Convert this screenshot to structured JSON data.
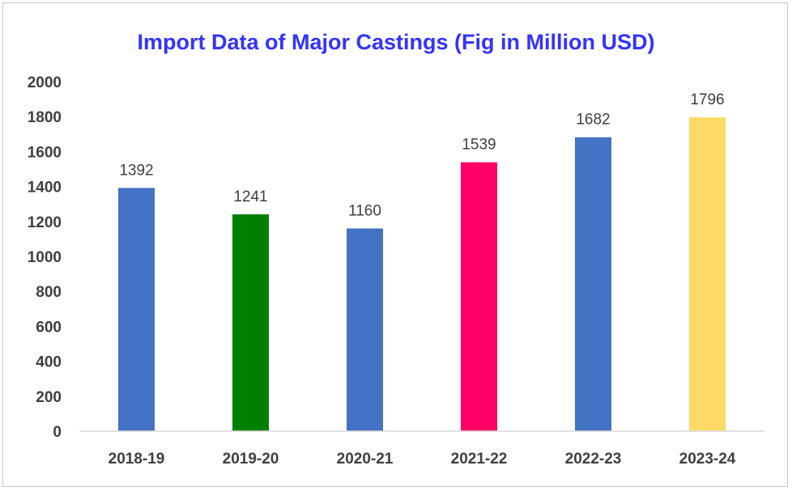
{
  "chart_data": {
    "type": "bar",
    "title": "Import Data of Major Castings (Fig in Million USD)",
    "categories": [
      "2018-19",
      "2019-20",
      "2020-21",
      "2021-22",
      "2022-23",
      "2023-24"
    ],
    "values": [
      1392,
      1241,
      1160,
      1539,
      1682,
      1796
    ],
    "bar_colors": [
      "#4472C4",
      "#008000",
      "#4472C4",
      "#FF0066",
      "#4472C4",
      "#FFD966"
    ],
    "ylim": [
      0,
      2000
    ],
    "yticks": [
      "0",
      "200",
      "400",
      "600",
      "800",
      "1000",
      "1200",
      "1400",
      "1600",
      "1800",
      "2000"
    ],
    "grid": false,
    "data_labels": true,
    "title_color": "#3333FF",
    "axis_color": "#D9D9D9"
  }
}
